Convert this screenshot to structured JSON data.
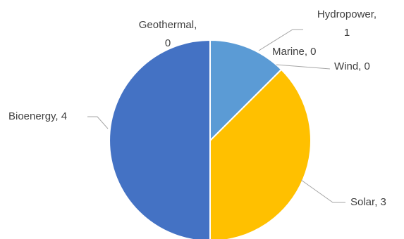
{
  "chart_data": {
    "type": "pie",
    "categories": [
      "Hydropower",
      "Marine",
      "Wind",
      "Solar",
      "Bioenergy",
      "Geothermal"
    ],
    "values": [
      1,
      0,
      0,
      3,
      4,
      0
    ],
    "colors": [
      "#5B9BD5",
      "#ED7D31",
      "#A5A5A5",
      "#FFC000",
      "#4472C4",
      "#70AD47"
    ],
    "data_labels": {
      "hydropower": [
        "Hydropower,",
        "1"
      ],
      "marine": [
        "Marine, 0"
      ],
      "wind": [
        "Wind, 0"
      ],
      "solar": [
        "Solar, 3"
      ],
      "bioenergy": [
        "Bioenergy, 4"
      ],
      "geothermal": [
        "Geothermal,",
        "0"
      ]
    },
    "legend": "none"
  }
}
